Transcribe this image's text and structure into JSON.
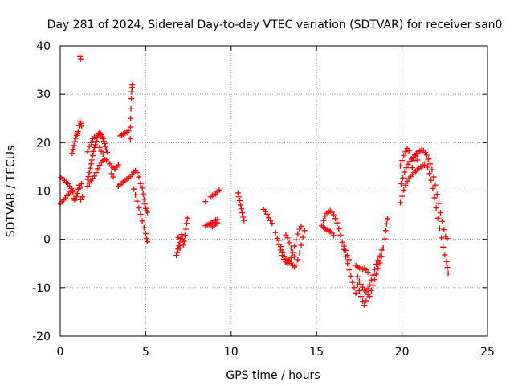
{
  "chart_data": {
    "type": "scatter",
    "title": "Day 281 of 2024, Sidereal Day-to-day VTEC variation (SDTVAR) for receiver san0",
    "xlabel": "GPS time / hours",
    "ylabel": "SDTVAR / TECUs",
    "xlim": [
      0,
      25
    ],
    "ylim": [
      -20,
      40
    ],
    "xticks": [
      0,
      5,
      10,
      15,
      20,
      25
    ],
    "yticks": [
      -20,
      -10,
      0,
      10,
      20,
      30,
      40
    ],
    "grid": true,
    "marker": "+",
    "color": "#ff0000",
    "points": [
      [
        0.0,
        7.3
      ],
      [
        0.05,
        12.8
      ],
      [
        0.1,
        7.8
      ],
      [
        0.15,
        12.5
      ],
      [
        0.2,
        8.1
      ],
      [
        0.25,
        12.2
      ],
      [
        0.3,
        8.6
      ],
      [
        0.35,
        11.8
      ],
      [
        0.4,
        9.0
      ],
      [
        0.45,
        11.5
      ],
      [
        0.5,
        9.4
      ],
      [
        0.55,
        11.0
      ],
      [
        0.6,
        9.8
      ],
      [
        0.65,
        10.5
      ],
      [
        0.7,
        10.1
      ],
      [
        0.75,
        9.8
      ],
      [
        0.8,
        8.5
      ],
      [
        0.85,
        8.1
      ],
      [
        0.9,
        8.3
      ],
      [
        0.95,
        8.8
      ],
      [
        1.0,
        9.5
      ],
      [
        1.05,
        10.4
      ],
      [
        1.1,
        11.2
      ],
      [
        1.15,
        10.6
      ],
      [
        0.7,
        17.8
      ],
      [
        0.75,
        18.6
      ],
      [
        0.8,
        19.4
      ],
      [
        0.85,
        20.2
      ],
      [
        0.9,
        20.9
      ],
      [
        0.95,
        21.5
      ],
      [
        1.0,
        21.8
      ],
      [
        1.05,
        22.3
      ],
      [
        1.1,
        23.5
      ],
      [
        1.15,
        24.4
      ],
      [
        1.2,
        24.0
      ],
      [
        1.25,
        23.4
      ],
      [
        1.15,
        37.8
      ],
      [
        1.2,
        37.3
      ],
      [
        1.2,
        8.2
      ],
      [
        1.25,
        11.5
      ],
      [
        1.3,
        8.8
      ],
      [
        1.6,
        12.4
      ],
      [
        1.65,
        13.0
      ],
      [
        1.7,
        13.8
      ],
      [
        1.75,
        14.7
      ],
      [
        1.8,
        15.6
      ],
      [
        1.85,
        16.4
      ],
      [
        1.9,
        17.3
      ],
      [
        1.95,
        18.2
      ],
      [
        2.0,
        19.0
      ],
      [
        2.05,
        19.6
      ],
      [
        2.1,
        20.3
      ],
      [
        2.15,
        21.0
      ],
      [
        2.2,
        21.5
      ],
      [
        2.25,
        21.8
      ],
      [
        2.3,
        22.0
      ],
      [
        2.35,
        21.9
      ],
      [
        2.4,
        21.6
      ],
      [
        2.45,
        21.2
      ],
      [
        2.5,
        20.8
      ],
      [
        2.55,
        20.3
      ],
      [
        2.6,
        19.8
      ],
      [
        2.65,
        19.2
      ],
      [
        2.7,
        18.5
      ],
      [
        2.75,
        18.0
      ],
      [
        1.6,
        18.1
      ],
      [
        1.7,
        19.2
      ],
      [
        1.8,
        20.0
      ],
      [
        1.9,
        20.8
      ],
      [
        2.0,
        21.2
      ],
      [
        2.3,
        19.0
      ],
      [
        2.4,
        18.2
      ],
      [
        2.5,
        17.6
      ],
      [
        1.6,
        11.0
      ],
      [
        1.7,
        11.6
      ],
      [
        1.8,
        12.1
      ],
      [
        1.9,
        12.6
      ],
      [
        2.0,
        13.1
      ],
      [
        2.1,
        13.8
      ],
      [
        2.2,
        14.6
      ],
      [
        2.3,
        15.3
      ],
      [
        2.4,
        15.9
      ],
      [
        2.5,
        16.3
      ],
      [
        2.6,
        16.5
      ],
      [
        2.7,
        16.4
      ],
      [
        2.8,
        16.0
      ],
      [
        2.9,
        15.6
      ],
      [
        3.0,
        15.1
      ],
      [
        3.1,
        14.8
      ],
      [
        3.2,
        14.5
      ],
      [
        3.3,
        14.9
      ],
      [
        3.4,
        15.4
      ],
      [
        3.0,
        13.6
      ],
      [
        3.1,
        12.9
      ],
      [
        3.4,
        11.0
      ],
      [
        3.5,
        11.3
      ],
      [
        3.6,
        11.6
      ],
      [
        3.7,
        11.9
      ],
      [
        3.8,
        12.2
      ],
      [
        3.9,
        12.5
      ],
      [
        4.0,
        12.7
      ],
      [
        4.1,
        13.0
      ],
      [
        3.5,
        21.4
      ],
      [
        3.6,
        21.6
      ],
      [
        3.7,
        21.8
      ],
      [
        3.8,
        22.0
      ],
      [
        3.9,
        22.1
      ],
      [
        4.0,
        22.4
      ],
      [
        4.1,
        20.8
      ],
      [
        4.1,
        23.2
      ],
      [
        4.12,
        25.0
      ],
      [
        4.14,
        27.0
      ],
      [
        4.16,
        29.1
      ],
      [
        4.18,
        30.5
      ],
      [
        4.2,
        31.4
      ],
      [
        4.22,
        31.9
      ],
      [
        4.2,
        13.4
      ],
      [
        4.3,
        13.9
      ],
      [
        4.4,
        14.2
      ],
      [
        4.5,
        13.8
      ],
      [
        4.6,
        12.9
      ],
      [
        4.7,
        11.5
      ],
      [
        4.3,
        10.4
      ],
      [
        4.4,
        9.2
      ],
      [
        4.5,
        7.9
      ],
      [
        4.6,
        6.5
      ],
      [
        4.7,
        5.2
      ],
      [
        4.8,
        3.8
      ],
      [
        4.9,
        2.4
      ],
      [
        5.0,
        1.2
      ],
      [
        5.05,
        0.2
      ],
      [
        5.1,
        -0.5
      ],
      [
        4.8,
        10.6
      ],
      [
        4.85,
        9.4
      ],
      [
        4.9,
        8.3
      ],
      [
        4.95,
        7.3
      ],
      [
        5.0,
        6.4
      ],
      [
        5.05,
        5.9
      ],
      [
        5.1,
        5.6
      ],
      [
        6.8,
        -3.3
      ],
      [
        6.85,
        -2.7
      ],
      [
        6.9,
        -2.0
      ],
      [
        6.95,
        -1.3
      ],
      [
        7.0,
        -0.6
      ],
      [
        7.05,
        0.2
      ],
      [
        7.1,
        1.0
      ],
      [
        7.15,
        0.1
      ],
      [
        7.2,
        -1.2
      ],
      [
        7.25,
        -0.4
      ],
      [
        7.3,
        0.8
      ],
      [
        7.35,
        2.1
      ],
      [
        7.4,
        3.3
      ],
      [
        7.45,
        4.4
      ],
      [
        6.9,
        0.4
      ],
      [
        7.0,
        -1.8
      ],
      [
        8.5,
        7.8
      ],
      [
        8.5,
        2.8
      ],
      [
        8.6,
        3.0
      ],
      [
        8.7,
        3.1
      ],
      [
        8.8,
        3.3
      ],
      [
        8.9,
        3.5
      ],
      [
        9.0,
        3.8
      ],
      [
        9.1,
        4.0
      ],
      [
        9.2,
        4.1
      ],
      [
        8.9,
        2.6
      ],
      [
        9.0,
        2.9
      ],
      [
        9.1,
        3.2
      ],
      [
        9.2,
        3.4
      ],
      [
        8.8,
        8.8
      ],
      [
        8.9,
        9.1
      ],
      [
        9.0,
        9.2
      ],
      [
        9.1,
        9.4
      ],
      [
        9.2,
        9.8
      ],
      [
        9.3,
        10.2
      ],
      [
        10.4,
        9.6
      ],
      [
        10.45,
        8.8
      ],
      [
        10.5,
        8.0
      ],
      [
        10.55,
        7.1
      ],
      [
        10.6,
        6.3
      ],
      [
        10.65,
        5.5
      ],
      [
        10.7,
        4.6
      ],
      [
        10.75,
        3.9
      ],
      [
        11.9,
        6.2
      ],
      [
        12.0,
        5.7
      ],
      [
        12.1,
        5.2
      ],
      [
        12.2,
        4.5
      ],
      [
        12.3,
        3.9
      ],
      [
        12.4,
        3.3
      ],
      [
        12.6,
        1.4
      ],
      [
        12.7,
        0.2
      ],
      [
        12.8,
        -1.1
      ],
      [
        12.9,
        -2.2
      ],
      [
        13.0,
        -3.3
      ],
      [
        13.1,
        -4.1
      ],
      [
        13.2,
        -4.7
      ],
      [
        13.3,
        -5.0
      ],
      [
        13.4,
        -4.6
      ],
      [
        13.5,
        -3.8
      ],
      [
        13.6,
        -2.7
      ],
      [
        13.7,
        -1.4
      ],
      [
        13.8,
        -0.1
      ],
      [
        13.9,
        1.1
      ],
      [
        14.0,
        2.1
      ],
      [
        14.1,
        2.7
      ],
      [
        12.8,
        -0.2
      ],
      [
        12.9,
        -1.5
      ],
      [
        13.0,
        -2.6
      ],
      [
        13.1,
        -3.5
      ],
      [
        13.2,
        -4.1
      ],
      [
        13.3,
        -4.4
      ],
      [
        13.4,
        -4.3
      ],
      [
        13.5,
        -4.9
      ],
      [
        13.6,
        -5.4
      ],
      [
        13.7,
        -5.7
      ],
      [
        13.8,
        -5.3
      ],
      [
        13.9,
        -4.2
      ],
      [
        14.0,
        -2.8
      ],
      [
        14.1,
        -1.2
      ],
      [
        14.2,
        0.4
      ],
      [
        14.3,
        1.8
      ],
      [
        13.2,
        0.9
      ],
      [
        13.3,
        0.3
      ],
      [
        13.4,
        -0.7
      ],
      [
        13.5,
        -1.8
      ],
      [
        13.6,
        -2.8
      ],
      [
        13.7,
        -3.6
      ],
      [
        15.3,
        2.8
      ],
      [
        15.4,
        3.9
      ],
      [
        15.5,
        4.8
      ],
      [
        15.6,
        5.4
      ],
      [
        15.7,
        5.7
      ],
      [
        15.8,
        5.9
      ],
      [
        15.9,
        5.6
      ],
      [
        16.0,
        5.1
      ],
      [
        16.1,
        4.3
      ],
      [
        16.2,
        3.4
      ],
      [
        16.3,
        2.2
      ],
      [
        16.4,
        0.9
      ],
      [
        16.5,
        -0.6
      ],
      [
        16.6,
        -2.1
      ],
      [
        16.7,
        -3.6
      ],
      [
        16.8,
        -5.0
      ],
      [
        16.9,
        -6.3
      ],
      [
        17.0,
        -7.6
      ],
      [
        17.1,
        -8.9
      ],
      [
        17.2,
        -10.0
      ],
      [
        17.3,
        -11.1
      ],
      [
        15.4,
        2.5
      ],
      [
        15.5,
        2.2
      ],
      [
        15.6,
        2.0
      ],
      [
        15.7,
        1.8
      ],
      [
        15.8,
        1.6
      ],
      [
        15.9,
        1.3
      ],
      [
        16.0,
        0.8
      ],
      [
        16.6,
        -1.4
      ],
      [
        16.7,
        -2.3
      ],
      [
        16.8,
        -3.3
      ],
      [
        16.9,
        -4.2
      ],
      [
        17.3,
        -5.4
      ],
      [
        17.4,
        -5.7
      ],
      [
        17.5,
        -5.9
      ],
      [
        17.6,
        -6.1
      ],
      [
        17.7,
        -6.2
      ],
      [
        17.8,
        -6.0
      ],
      [
        17.9,
        -6.3
      ],
      [
        18.0,
        -6.8
      ],
      [
        17.4,
        -9.4
      ],
      [
        17.5,
        -10.6
      ],
      [
        17.6,
        -11.8
      ],
      [
        17.7,
        -12.8
      ],
      [
        17.8,
        -13.6
      ],
      [
        17.9,
        -12.7
      ],
      [
        18.0,
        -11.4
      ],
      [
        17.4,
        -7.7
      ],
      [
        17.5,
        -8.6
      ],
      [
        17.6,
        -9.3
      ],
      [
        17.7,
        -9.9
      ],
      [
        17.8,
        -10.5
      ],
      [
        17.9,
        -10.8
      ],
      [
        18.0,
        -10.2
      ],
      [
        18.1,
        -9.4
      ],
      [
        18.2,
        -8.4
      ],
      [
        18.3,
        -7.4
      ],
      [
        18.4,
        -6.2
      ],
      [
        18.5,
        -5.1
      ],
      [
        18.6,
        -4.3
      ],
      [
        18.7,
        -3.4
      ],
      [
        18.8,
        -2.2
      ],
      [
        18.1,
        -11.8
      ],
      [
        18.2,
        -10.6
      ],
      [
        18.3,
        -9.5
      ],
      [
        18.4,
        -8.3
      ],
      [
        18.5,
        -7.2
      ],
      [
        18.6,
        -6.0
      ],
      [
        18.7,
        -4.9
      ],
      [
        18.8,
        -3.5
      ],
      [
        18.9,
        -1.8
      ],
      [
        19.0,
        0.1
      ],
      [
        19.05,
        1.8
      ],
      [
        19.1,
        3.2
      ],
      [
        19.15,
        4.3
      ],
      [
        19.9,
        7.6
      ],
      [
        20.0,
        8.9
      ],
      [
        20.1,
        10.2
      ],
      [
        20.2,
        11.2
      ],
      [
        20.3,
        12.0
      ],
      [
        20.4,
        12.6
      ],
      [
        20.5,
        13.0
      ],
      [
        20.6,
        13.4
      ],
      [
        20.7,
        13.8
      ],
      [
        20.8,
        14.1
      ],
      [
        20.9,
        14.4
      ],
      [
        21.0,
        14.7
      ],
      [
        21.1,
        15.0
      ],
      [
        21.2,
        15.2
      ],
      [
        21.3,
        15.3
      ],
      [
        19.9,
        15.2
      ],
      [
        20.0,
        16.3
      ],
      [
        20.1,
        17.3
      ],
      [
        20.2,
        18.1
      ],
      [
        20.3,
        18.8
      ],
      [
        20.4,
        18.3
      ],
      [
        19.95,
        11.5
      ],
      [
        20.05,
        12.7
      ],
      [
        20.15,
        13.9
      ],
      [
        20.25,
        14.8
      ],
      [
        20.35,
        15.5
      ],
      [
        20.45,
        16.1
      ],
      [
        20.55,
        16.6
      ],
      [
        20.65,
        17.0
      ],
      [
        20.75,
        17.4
      ],
      [
        20.85,
        17.8
      ],
      [
        20.95,
        18.1
      ],
      [
        21.05,
        18.3
      ],
      [
        21.15,
        18.5
      ],
      [
        21.25,
        18.4
      ],
      [
        21.35,
        18.0
      ],
      [
        21.45,
        17.4
      ],
      [
        21.55,
        16.6
      ],
      [
        21.65,
        15.6
      ],
      [
        21.75,
        14.4
      ],
      [
        21.85,
        12.9
      ],
      [
        21.95,
        11.2
      ],
      [
        22.05,
        9.3
      ],
      [
        22.15,
        7.4
      ],
      [
        22.25,
        5.5
      ],
      [
        22.35,
        3.7
      ],
      [
        22.45,
        2.0
      ],
      [
        22.55,
        0.6
      ],
      [
        22.65,
        0.2
      ],
      [
        20.6,
        14.8
      ],
      [
        20.7,
        16.3
      ],
      [
        20.8,
        17.2
      ],
      [
        20.9,
        16.4
      ],
      [
        21.4,
        16.0
      ],
      [
        21.5,
        14.9
      ],
      [
        21.6,
        13.6
      ],
      [
        21.7,
        12.2
      ],
      [
        21.8,
        10.5
      ],
      [
        21.9,
        8.6
      ],
      [
        22.0,
        6.5
      ],
      [
        22.1,
        4.4
      ],
      [
        22.2,
        2.3
      ],
      [
        22.3,
        0.3
      ],
      [
        22.4,
        -1.6
      ],
      [
        22.5,
        -3.2
      ],
      [
        22.6,
        -4.6
      ],
      [
        22.65,
        -5.8
      ],
      [
        22.7,
        -7.0
      ]
    ]
  }
}
